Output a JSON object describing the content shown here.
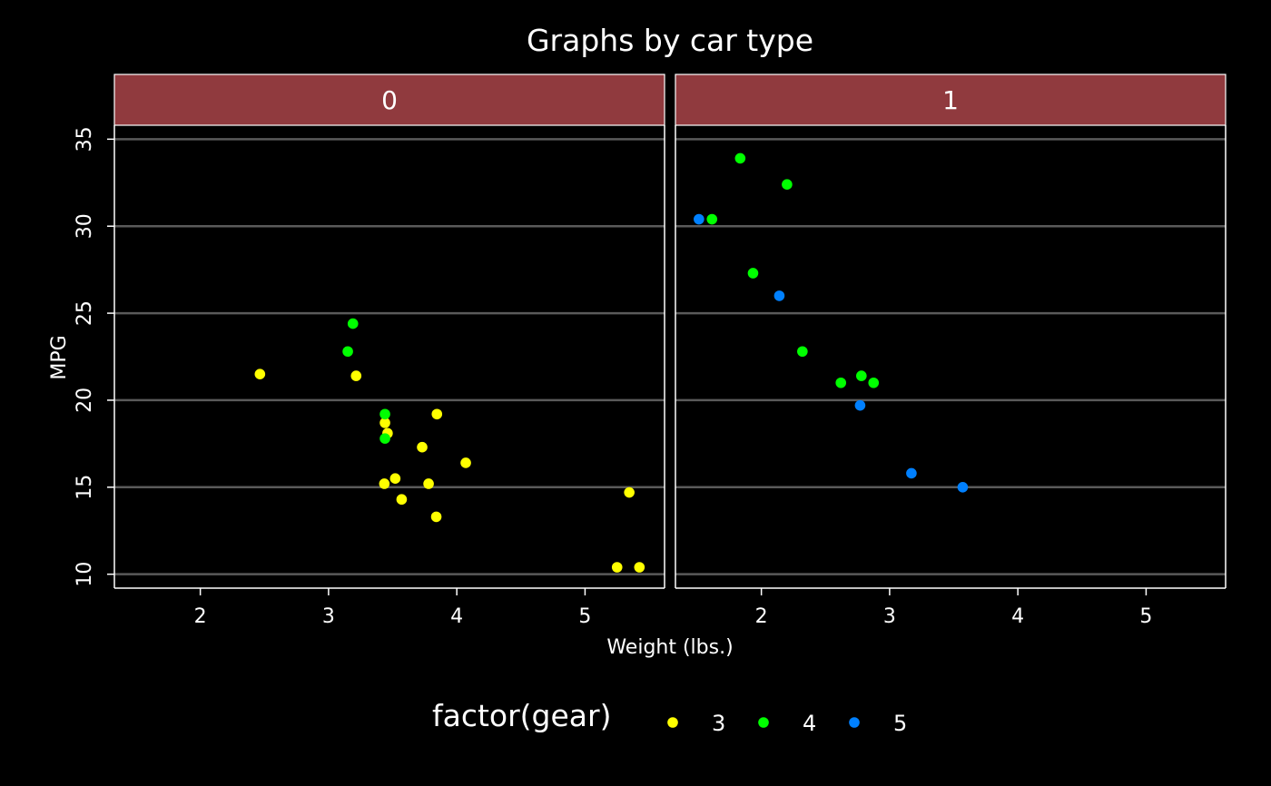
{
  "chart_data": {
    "type": "scatter",
    "title": "Graphs by car type",
    "xlabel": "Weight (lbs.)",
    "ylabel": "MPG",
    "xlim": [
      1.33,
      5.62
    ],
    "ylim": [
      9.2,
      35.8
    ],
    "xticks": [
      2,
      3,
      4,
      5
    ],
    "yticks": [
      10,
      15,
      20,
      25,
      30,
      35
    ],
    "grid": "horizontal",
    "legend": {
      "title": "factor(gear)",
      "position": "bottom",
      "entries": [
        {
          "label": "3",
          "color": "#FFFF00"
        },
        {
          "label": "4",
          "color": "#00FF00"
        },
        {
          "label": "5",
          "color": "#0080FF"
        }
      ]
    },
    "strip_color": "#903A3E",
    "panels": [
      {
        "label": "0",
        "series": [
          {
            "name": "3",
            "points": [
              [
                2.465,
                21.5
              ],
              [
                3.215,
                21.4
              ],
              [
                3.44,
                18.7
              ],
              [
                3.46,
                18.1
              ],
              [
                3.57,
                14.3
              ],
              [
                4.07,
                16.4
              ],
              [
                3.73,
                17.3
              ],
              [
                3.78,
                15.2
              ],
              [
                5.25,
                10.4
              ],
              [
                5.424,
                10.4
              ],
              [
                5.345,
                14.7
              ],
              [
                3.52,
                15.5
              ],
              [
                3.435,
                15.2
              ],
              [
                3.84,
                13.3
              ],
              [
                3.845,
                19.2
              ]
            ]
          },
          {
            "name": "4",
            "points": [
              [
                3.19,
                24.4
              ],
              [
                3.15,
                22.8
              ],
              [
                3.44,
                19.2
              ],
              [
                3.44,
                17.8
              ]
            ]
          }
        ]
      },
      {
        "label": "1",
        "series": [
          {
            "name": "4",
            "points": [
              [
                2.62,
                21.0
              ],
              [
                2.875,
                21.0
              ],
              [
                2.32,
                22.8
              ],
              [
                2.2,
                32.4
              ],
              [
                1.615,
                30.4
              ],
              [
                1.835,
                33.9
              ],
              [
                1.935,
                27.3
              ],
              [
                2.78,
                21.4
              ]
            ]
          },
          {
            "name": "5",
            "points": [
              [
                2.14,
                26.0
              ],
              [
                1.513,
                30.4
              ],
              [
                3.17,
                15.8
              ],
              [
                2.77,
                19.7
              ],
              [
                3.57,
                15.0
              ]
            ]
          }
        ]
      }
    ]
  }
}
